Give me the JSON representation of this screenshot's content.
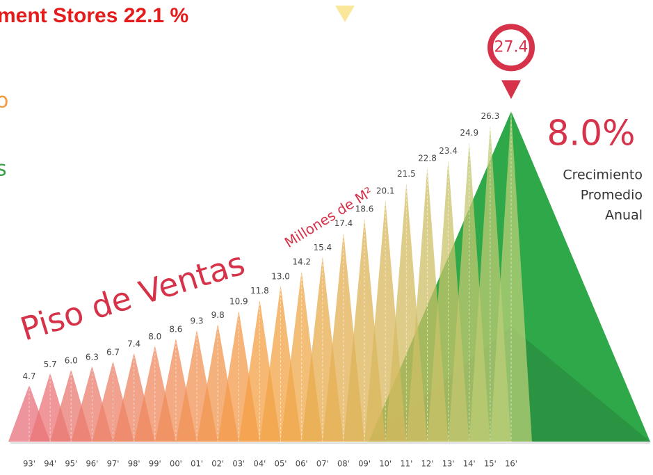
{
  "header_texts": [
    "ment Stores 22.1 %",
    "o",
    "s"
  ],
  "chart_data": {
    "type": "triangle",
    "title": "Piso de Ventas",
    "subtitle": "Millones de M²",
    "annotation": {
      "value": "8.0%",
      "text": [
        "Crecimiento",
        "Promedio",
        "Anual"
      ]
    },
    "categories": [
      "93'",
      "94'",
      "95'",
      "96'",
      "97'",
      "98'",
      "99'",
      "00'",
      "01'",
      "02'",
      "03'",
      "04'",
      "05'",
      "06'",
      "07'",
      "08'",
      "09'",
      "10'",
      "11'",
      "12'",
      "13'",
      "14'",
      "15'",
      "16'"
    ],
    "values": [
      4.7,
      5.7,
      6.0,
      6.3,
      6.7,
      7.4,
      8.0,
      8.6,
      9.3,
      9.8,
      10.9,
      11.8,
      13.0,
      14.2,
      15.4,
      17.4,
      18.6,
      20.1,
      21.5,
      22.8,
      23.4,
      24.9,
      26.3,
      27.4
    ],
    "value_labels": [
      "4.7",
      "5.7",
      "6.0",
      "6.3",
      "6.7",
      "7.4",
      "8.0",
      "8.6",
      "9.3",
      "9.8",
      "10.9",
      "11.8",
      "13.0",
      "14.2",
      "15.4",
      "17.4",
      "18.6",
      "20.1",
      "21.5",
      "22.8",
      "23.4",
      "24.9",
      "26.3",
      "27.4"
    ],
    "ylim": [
      0,
      28
    ],
    "gradient": [
      "#e8707c",
      "#f5a244",
      "#b9cf78"
    ],
    "highlight_color": "#d6334a"
  }
}
